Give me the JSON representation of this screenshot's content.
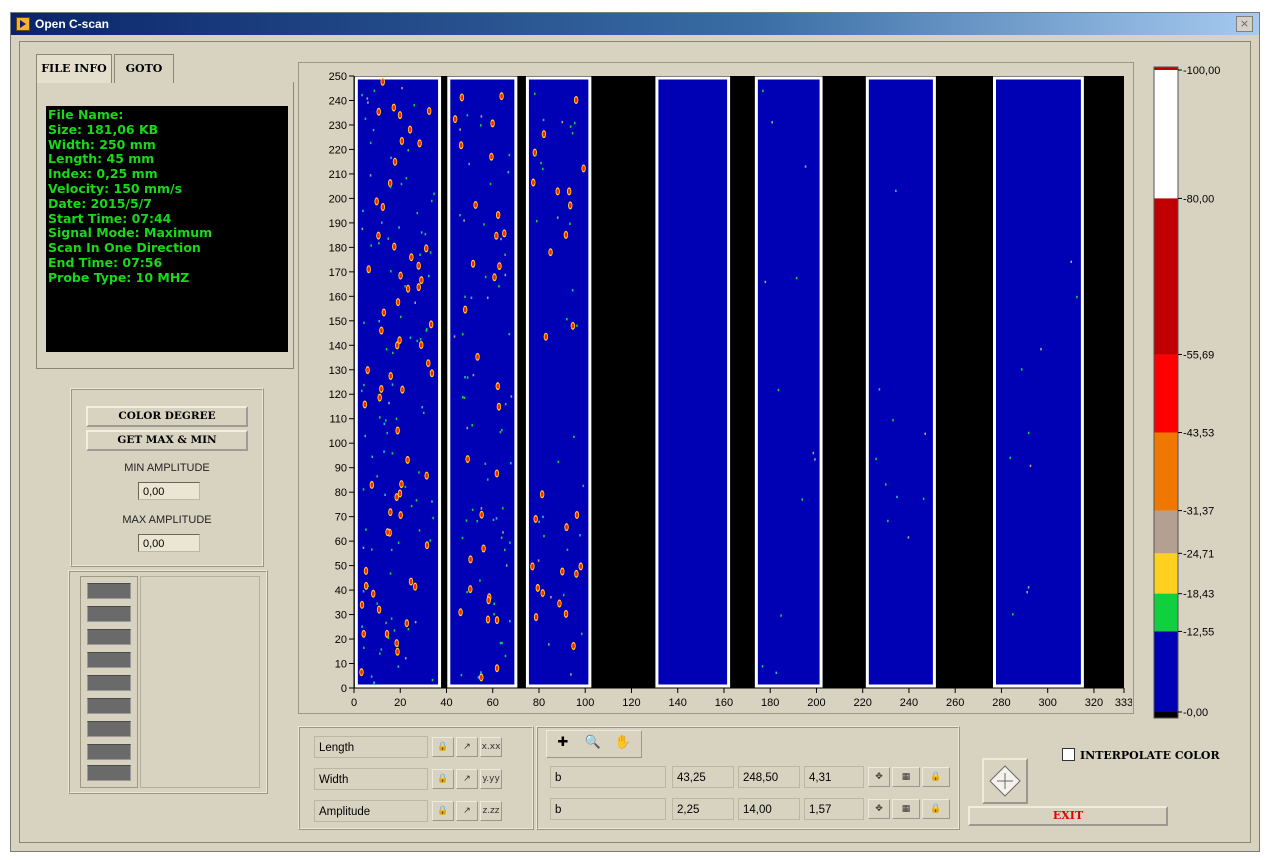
{
  "window": {
    "title": "Open C-scan",
    "close_label": "×"
  },
  "tabs": [
    {
      "label": "FILE INFO"
    },
    {
      "label": "GOTO"
    }
  ],
  "file_info": {
    "lines": [
      "File Name:",
      "Size: 181,06  KB",
      "Width: 250  mm",
      "Length: 45  mm",
      "Index: 0,25  mm",
      "Velocity: 150  mm/s",
      "Date: 2015/5/7",
      "Start Time: 07:44",
      "Signal Mode: Maximum",
      "Scan In One Direction",
      "End Time: 07:56",
      "Probe Type: 10 MHZ"
    ]
  },
  "controls": {
    "color_degree_label": "COLOR DEGREE",
    "get_max_min_label": "GET MAX & MIN",
    "min_amplitude_label": "MIN AMPLITUDE",
    "min_amplitude_value": "0,00",
    "max_amplitude_label": "MAX AMPLITUDE",
    "max_amplitude_value": "0,00"
  },
  "plot": {
    "y_ticks": [
      "0",
      "10",
      "20",
      "30",
      "40",
      "50",
      "60",
      "70",
      "80",
      "90",
      "100",
      "110",
      "120",
      "130",
      "140",
      "150",
      "160",
      "170",
      "180",
      "190",
      "200",
      "210",
      "220",
      "230",
      "240",
      "250"
    ],
    "x_ticks": [
      "0",
      "20",
      "40",
      "60",
      "80",
      "100",
      "120",
      "140",
      "160",
      "180",
      "200",
      "220",
      "240",
      "260",
      "280",
      "300",
      "320",
      "333"
    ],
    "x_range": [
      0,
      333
    ],
    "y_range": [
      0,
      250
    ],
    "colors": {
      "background": "#000000",
      "scan": "#0000b4",
      "separator": "#ffffff"
    }
  },
  "color_scale": {
    "labels": [
      "100,00",
      "80,00",
      "55,69",
      "43,53",
      "31,37",
      "24,71",
      "18,43",
      "12,55",
      "0,00"
    ],
    "colors": [
      "#ffffff",
      "#c00000",
      "#ff0000",
      "#f07800",
      "#b4a090",
      "#ffd020",
      "#10d040",
      "#0000b4",
      "#000000"
    ]
  },
  "axes": {
    "rows": [
      {
        "name": "Length",
        "fmt": "x.xx"
      },
      {
        "name": "Width",
        "fmt": "y.yy"
      },
      {
        "name": "Amplitude",
        "fmt": "z.zz"
      }
    ]
  },
  "cursors": {
    "rows": [
      {
        "name": "b",
        "x": "43,25",
        "y": "248,50",
        "z": "4,31"
      },
      {
        "name": "b",
        "x": "2,25",
        "y": "14,00",
        "z": "1,57"
      }
    ]
  },
  "interpolate_label": "INTERPOLATE COLOR",
  "exit_label": "EXIT"
}
